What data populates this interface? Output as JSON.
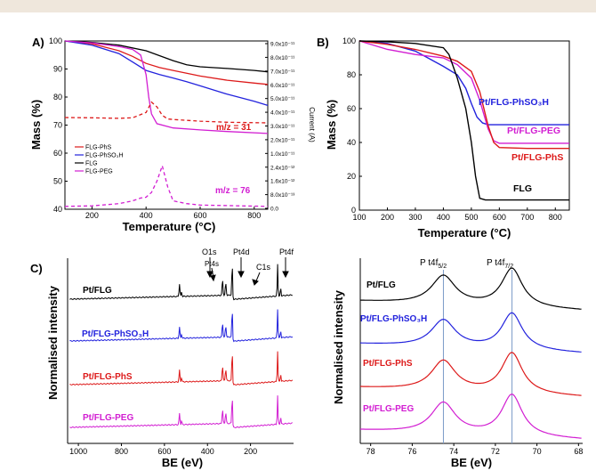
{
  "panels": [
    {
      "letter": "A)"
    },
    {
      "letter": "B)"
    },
    {
      "letter": "C)"
    }
  ],
  "colors": {
    "black": "#000000",
    "red": "#dd1a1a",
    "blue": "#2323dd",
    "magenta": "#d21ed2",
    "refline": "#7b9bc8"
  },
  "chart_data": [
    {
      "type": "line",
      "panel": "A",
      "xlabel": "Temperature (°C)",
      "ylabel": "Mass (%)",
      "y2label": "Current (A)",
      "xlim": [
        100,
        850
      ],
      "ylim": [
        40,
        100
      ],
      "xticks": [
        "200",
        "400",
        "600",
        "800"
      ],
      "yticks": [
        "40",
        "50",
        "60",
        "70",
        "80",
        "90",
        "100"
      ],
      "y2ticks": [
        "9.0x10⁻¹¹",
        "8.0x10⁻¹¹",
        "7.0x10⁻¹¹",
        "6.0x10⁻¹¹",
        "5.0x10⁻¹¹",
        "4.0x10⁻¹¹",
        "3.0x10⁻¹¹",
        "2.0x10⁻¹¹",
        "1.0x10⁻¹¹",
        "2.4x10⁻¹²",
        "1.6x10⁻¹²",
        "8.0x10⁻¹³",
        "0.0"
      ],
      "legend": [
        "FLG-PhS",
        "FLG-PhSO₃H",
        "FLG",
        "FLG-PEG"
      ],
      "legend_colors": [
        "#dd1a1a",
        "#2323dd",
        "#000000",
        "#d21ed2"
      ],
      "annotations": [
        {
          "text": "m/z = 31",
          "color": "#dd1a1a"
        },
        {
          "text": "m/z = 76",
          "color": "#d21ed2"
        }
      ],
      "series": [
        {
          "name": "FLG-PhS",
          "color": "#dd1a1a",
          "x": [
            100,
            200,
            300,
            350,
            400,
            450,
            500,
            550,
            600,
            700,
            800,
            850
          ],
          "y": [
            100,
            99,
            96.5,
            94.5,
            92,
            90.5,
            89.5,
            88.5,
            87.5,
            86,
            85,
            84.5
          ]
        },
        {
          "name": "FLG-PhSO₃H",
          "color": "#2323dd",
          "x": [
            100,
            200,
            300,
            350,
            400,
            450,
            500,
            550,
            600,
            700,
            800,
            850
          ],
          "y": [
            100,
            98.5,
            95.5,
            92.5,
            89.5,
            88,
            86.8,
            85.5,
            84,
            81,
            78.5,
            77
          ]
        },
        {
          "name": "FLG",
          "color": "#000000",
          "x": [
            100,
            200,
            300,
            400,
            500,
            550,
            600,
            700,
            800,
            850
          ],
          "y": [
            100,
            99.5,
            98.5,
            96.5,
            93,
            91.5,
            90.8,
            90.2,
            89.5,
            89
          ]
        },
        {
          "name": "FLG-PEG",
          "color": "#d21ed2",
          "x": [
            100,
            200,
            300,
            350,
            380,
            400,
            410,
            420,
            440,
            500,
            600,
            700,
            850
          ],
          "y": [
            100,
            99.3,
            98,
            97,
            95,
            88,
            80,
            74,
            70.5,
            69,
            68.3,
            67.7,
            67
          ]
        },
        {
          "name": "m/z = 31",
          "color": "#dd1a1a",
          "dashed": true,
          "x": [
            100,
            200,
            300,
            350,
            400,
            420,
            440,
            460,
            480,
            500,
            600,
            700,
            850
          ],
          "y": [
            72.7,
            72.6,
            72.4,
            72.6,
            74.5,
            78.2,
            76.5,
            73.5,
            72.2,
            72,
            71.4,
            71,
            70.8
          ]
        },
        {
          "name": "m/z = 76",
          "color": "#d21ed2",
          "dashed": true,
          "x": [
            100,
            200,
            300,
            350,
            380,
            400,
            420,
            440,
            460,
            480,
            500,
            550,
            600,
            700,
            850
          ],
          "y": [
            41,
            41.2,
            42,
            43,
            44,
            44.3,
            46,
            50,
            55.5,
            48,
            43,
            42,
            41.5,
            41.3,
            41
          ]
        }
      ]
    },
    {
      "type": "line",
      "panel": "B",
      "xlabel": "Temperature (°C)",
      "ylabel": "Mass (%)",
      "xlim": [
        100,
        850
      ],
      "ylim": [
        0,
        100
      ],
      "xticks": [
        "100",
        "200",
        "300",
        "400",
        "500",
        "600",
        "700",
        "800"
      ],
      "yticks": [
        "0",
        "20",
        "40",
        "60",
        "80",
        "100"
      ],
      "series": [
        {
          "name": "Pt/FLG-PhSO₃H",
          "label": "Pt/FLG-PhSO₃H",
          "color": "#2323dd",
          "x": [
            100,
            200,
            300,
            400,
            450,
            480,
            500,
            520,
            540,
            560,
            600,
            700,
            850
          ],
          "y": [
            100,
            98.5,
            94,
            85,
            80,
            72,
            63,
            55,
            51.5,
            50.5,
            50.5,
            50.5,
            50.5
          ]
        },
        {
          "name": "Pt/FLG-PEG",
          "label": "Pt/FLG-PEG",
          "color": "#d21ed2",
          "x": [
            100,
            200,
            300,
            400,
            450,
            500,
            530,
            560,
            580,
            600,
            700,
            850
          ],
          "y": [
            100,
            95,
            92,
            90,
            86,
            78,
            65,
            48,
            41,
            39.5,
            39.5,
            39.5
          ]
        },
        {
          "name": "Pt/FLG-PhS",
          "label": "Pt/FLG-PhS",
          "color": "#dd1a1a",
          "x": [
            100,
            200,
            300,
            400,
            450,
            500,
            530,
            560,
            580,
            600,
            700,
            850
          ],
          "y": [
            100,
            98,
            95,
            91,
            88,
            82,
            70,
            50,
            40,
            37,
            36.5,
            36.5
          ]
        },
        {
          "name": "FLG",
          "label": "FLG",
          "color": "#000000",
          "x": [
            100,
            200,
            300,
            400,
            420,
            450,
            480,
            500,
            515,
            530,
            550,
            600,
            850
          ],
          "y": [
            100,
            99.5,
            98.5,
            96,
            92,
            78,
            60,
            40,
            20,
            7,
            6,
            6,
            6
          ]
        }
      ]
    },
    {
      "type": "line",
      "panel": "C-left",
      "xlabel": "BE (eV)",
      "ylabel": "Normalised intensity",
      "xlim": [
        1050,
        0
      ],
      "xticks": [
        "1000",
        "800",
        "600",
        "400",
        "200"
      ],
      "peak_labels": [
        "O1s",
        "Pt4s",
        "Pt4d",
        "C1s",
        "Pt4f"
      ],
      "series": [
        {
          "name": "Pt/FLG",
          "color": "#000000"
        },
        {
          "name": "Pt/FLG-PhSO₃H",
          "color": "#2323dd"
        },
        {
          "name": "Pt/FLG-PhS",
          "color": "#dd1a1a"
        },
        {
          "name": "Pt/FLG-PEG",
          "color": "#d21ed2"
        }
      ]
    },
    {
      "type": "line",
      "panel": "C-right",
      "xlabel": "BE (eV)",
      "ylabel": "Normalised intensity",
      "xlim": [
        78.5,
        67.8
      ],
      "xticks": [
        "78",
        "76",
        "74",
        "72",
        "70",
        "68"
      ],
      "peak_labels": [
        {
          "main": "P t4f",
          "sub": "5/2",
          "x": 74.5
        },
        {
          "main": "P t4f",
          "sub": "7/2",
          "x": 71.2
        }
      ],
      "series": [
        {
          "name": "Pt/FLG",
          "color": "#000000"
        },
        {
          "name": "Pt/FLG-PhSO₃H",
          "color": "#2323dd"
        },
        {
          "name": "Pt/FLG-PhS",
          "color": "#dd1a1a"
        },
        {
          "name": "Pt/FLG-PEG",
          "color": "#d21ed2"
        }
      ]
    }
  ]
}
